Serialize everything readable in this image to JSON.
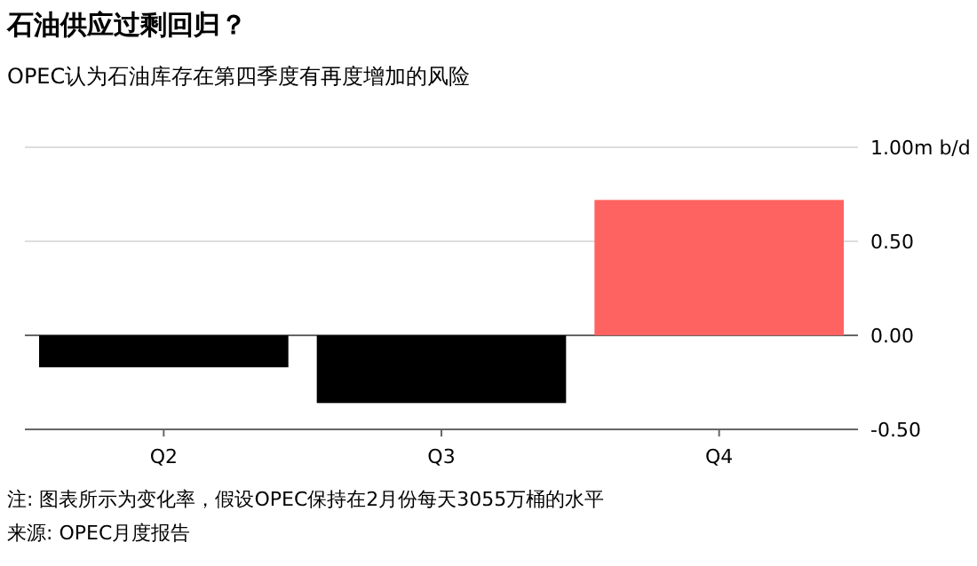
{
  "chart_data": {
    "type": "bar",
    "title": "石油供应过剩回归？",
    "subtitle": "OPEC认为石油库存在第四季度有再度增加的风险",
    "categories": [
      "Q2",
      "Q3",
      "Q4"
    ],
    "values": [
      -0.17,
      -0.36,
      0.72
    ],
    "colors": [
      "#000000",
      "#000000",
      "#ff6361"
    ],
    "ylim": [
      -0.5,
      1.0
    ],
    "yticks": [
      {
        "value": -0.5,
        "label": "-0.50"
      },
      {
        "value": 0,
        "label": "0.00"
      },
      {
        "value": 0.5,
        "label": "0.50"
      },
      {
        "value": 1,
        "label": "1.00m b/d"
      }
    ],
    "ref_lines": [
      {
        "axis": "y",
        "value": 1,
        "color": "#dddddd"
      },
      {
        "axis": "y",
        "value": 0.5,
        "color": "#dddddd"
      },
      {
        "axis": "y",
        "value": 0,
        "color": "#666666"
      }
    ],
    "annotations": [
      "注: 图表所示为变化率，假设OPEC保持在2月份每天3055万桶的水平",
      "来源: OPEC月度报告"
    ]
  }
}
